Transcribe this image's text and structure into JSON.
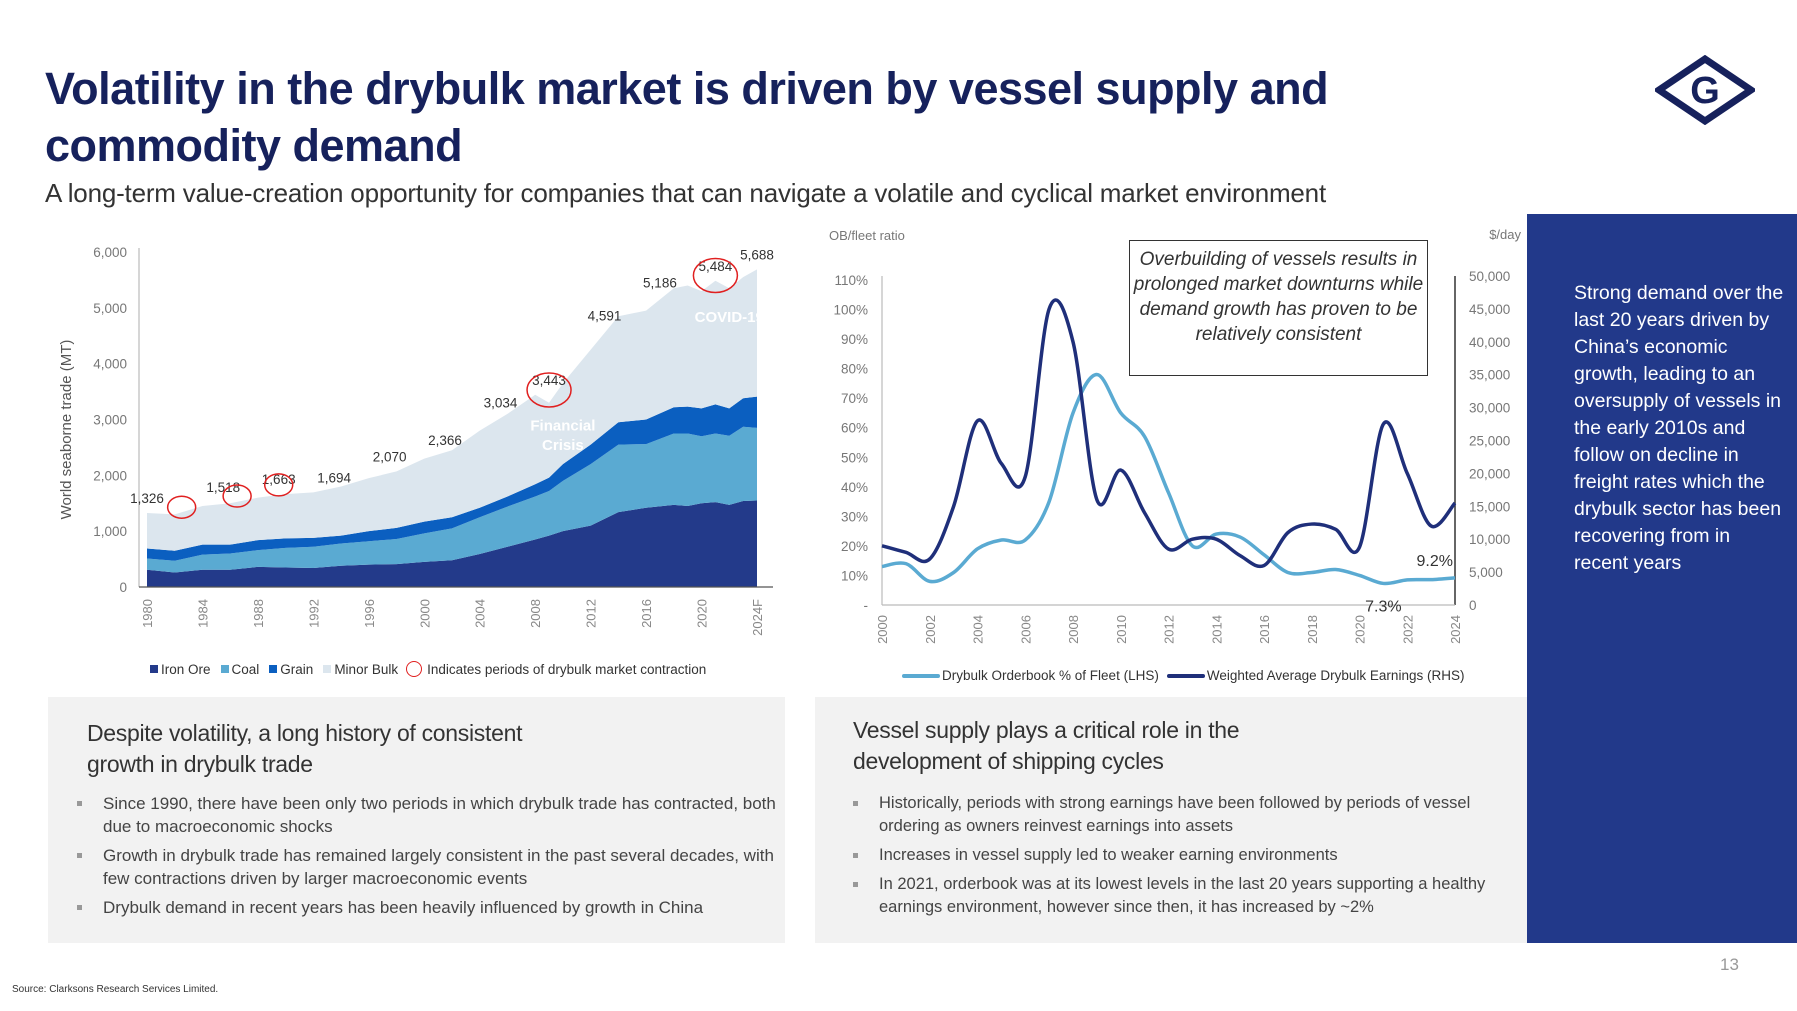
{
  "header": {
    "title": "Volatility in the drybulk market is driven by vessel supply and commodity demand",
    "subtitle": "A long-term value-creation opportunity for companies that can navigate a volatile and cyclical market environment",
    "logo_letter": "G"
  },
  "colors": {
    "title": "#16215c",
    "iron_ore": "#233a8a",
    "coal": "#5aaad2",
    "grain": "#0b5fc0",
    "minor_bulk": "#dce6ee",
    "contraction_circle": "#e02020",
    "orderbook_line": "#5aaad2",
    "earnings_line": "#1f2f7a",
    "panel": "#22398a"
  },
  "chart_data": [
    {
      "type": "area",
      "stacked": true,
      "ylabel": "World seaborne trade (MT)",
      "ylim": [
        0,
        6000
      ],
      "yticks": [
        0,
        1000,
        2000,
        3000,
        4000,
        5000,
        6000
      ],
      "ytick_labels": [
        "0",
        "1,000",
        "2,000",
        "3,000",
        "4,000",
        "5,000",
        "6,000"
      ],
      "xticks": [
        "1980",
        "1984",
        "1988",
        "1992",
        "1996",
        "2000",
        "2004",
        "2008",
        "2012",
        "2016",
        "2020",
        "2024F"
      ],
      "x": [
        1980,
        1982,
        1984,
        1986,
        1988,
        1990,
        1992,
        1994,
        1996,
        1998,
        2000,
        2002,
        2004,
        2006,
        2008,
        2009,
        2010,
        2012,
        2014,
        2016,
        2018,
        2019,
        2020,
        2021,
        2022,
        2023,
        2024
      ],
      "series": [
        {
          "name": "Iron Ore",
          "values": [
            310,
            260,
            310,
            310,
            360,
            350,
            340,
            380,
            400,
            410,
            450,
            480,
            590,
            720,
            850,
            920,
            1000,
            1100,
            1340,
            1420,
            1470,
            1450,
            1500,
            1520,
            1470,
            1540,
            1550
          ]
        },
        {
          "name": "Coal",
          "values": [
            200,
            210,
            270,
            290,
            300,
            350,
            380,
            400,
            420,
            450,
            510,
            570,
            660,
            720,
            770,
            800,
            900,
            1100,
            1210,
            1140,
            1280,
            1300,
            1200,
            1230,
            1240,
            1330,
            1300
          ]
        },
        {
          "name": "Grain",
          "values": [
            180,
            180,
            180,
            160,
            180,
            170,
            160,
            140,
            180,
            200,
            210,
            200,
            170,
            180,
            220,
            240,
            300,
            350,
            400,
            440,
            470,
            480,
            500,
            520,
            490,
            510,
            560
          ]
        },
        {
          "name": "Minor Bulk",
          "values": [
            636,
            650,
            690,
            740,
            760,
            793,
            814,
            880,
            950,
            1010,
            1130,
            1200,
            1380,
            1480,
            1603,
            1340,
            1450,
            1700,
            1900,
            1950,
            2130,
            2170,
            2100,
            2214,
            2150,
            2170,
            2278
          ]
        }
      ],
      "data_labels": [
        {
          "x": 1980,
          "value": 1326,
          "text": "1,326"
        },
        {
          "x": 1985.5,
          "value": 1518,
          "text": "1,518"
        },
        {
          "x": 1989.5,
          "value": 1663,
          "text": "1,663"
        },
        {
          "x": 1993.5,
          "value": 1694,
          "text": "1,694"
        },
        {
          "x": 1997.5,
          "value": 2070,
          "text": "2,070"
        },
        {
          "x": 2001.5,
          "value": 2366,
          "text": "2,366"
        },
        {
          "x": 2005.5,
          "value": 3034,
          "text": "3,034"
        },
        {
          "x": 2009,
          "value": 3443,
          "text": "3,443"
        },
        {
          "x": 2013,
          "value": 4591,
          "text": "4,591"
        },
        {
          "x": 2017,
          "value": 5186,
          "text": "5,186"
        },
        {
          "x": 2021,
          "value": 5484,
          "text": "5,484"
        },
        {
          "x": 2024,
          "value": 5688,
          "text": "5,688"
        }
      ],
      "contraction_periods": [
        {
          "x": 1982.5,
          "value": 1250
        },
        {
          "x": 1986.5,
          "value": 1450
        },
        {
          "x": 1989.5,
          "value": 1650
        },
        {
          "x": 2009,
          "value": 3350
        },
        {
          "x": 2021,
          "value": 5400
        }
      ],
      "annotations": [
        {
          "x": 2010,
          "value": 2800,
          "text": "Financial"
        },
        {
          "x": 2010,
          "value": 2450,
          "text": "Crisis"
        },
        {
          "x": 2022,
          "value": 4750,
          "text": "COVID-19"
        }
      ],
      "legend": {
        "placement": "bottom",
        "items": [
          "Iron Ore",
          "Coal",
          "Grain",
          "Minor Bulk"
        ],
        "circle_note": "Indicates periods of drybulk market contraction"
      }
    },
    {
      "type": "line",
      "ylabel_left": "OB/fleet ratio",
      "ylabel_right": "$/day",
      "ylim_left": [
        0,
        110
      ],
      "ylim_right": [
        0,
        50000
      ],
      "yticks_left_labels": [
        "-",
        "10%",
        "20%",
        "30%",
        "40%",
        "50%",
        "60%",
        "70%",
        "80%",
        "90%",
        "100%",
        "110%"
      ],
      "yticks_right_labels": [
        "0",
        "5,000",
        "10,000",
        "15,000",
        "20,000",
        "25,000",
        "30,000",
        "35,000",
        "40,000",
        "45,000",
        "50,000"
      ],
      "xticks": [
        "2000",
        "2002",
        "2004",
        "2006",
        "2008",
        "2010",
        "2012",
        "2014",
        "2016",
        "2018",
        "2020",
        "2022",
        "2024"
      ],
      "x": [
        2000,
        2001,
        2002,
        2003,
        2004,
        2005,
        2006,
        2007,
        2008,
        2009,
        2010,
        2011,
        2012,
        2013,
        2014,
        2015,
        2016,
        2017,
        2018,
        2019,
        2020,
        2021,
        2022,
        2023,
        2024
      ],
      "series": [
        {
          "name": "Drybulk Orderbook % of Fleet (LHS)",
          "axis": "left",
          "values": [
            13,
            14,
            8,
            11,
            19,
            22,
            22,
            35,
            65,
            78,
            65,
            57,
            38,
            20,
            24,
            23,
            17,
            11,
            11,
            12,
            10,
            7.3,
            8.5,
            8.6,
            9.2
          ]
        },
        {
          "name": "Weighted Average Drybulk Earnings (RHS)",
          "axis": "right",
          "values": [
            9000,
            8000,
            7000,
            15000,
            28000,
            21500,
            19500,
            45000,
            40000,
            16000,
            20500,
            14000,
            8500,
            10000,
            10000,
            7500,
            6000,
            11000,
            12300,
            11500,
            8800,
            27500,
            20000,
            12000,
            15500
          ]
        }
      ],
      "data_labels": [
        {
          "x": 2024,
          "value": 9.2,
          "text": "9.2%"
        },
        {
          "x": 2021,
          "value": 7.3,
          "text": "7.3%"
        }
      ],
      "annotation_box": "Overbuilding of vessels results in prolonged market downturns while demand growth has proven to be relatively consistent",
      "legend": {
        "placement": "bottom"
      }
    }
  ],
  "left_box": {
    "heading": "Despite volatility, a long history of consistent growth in drybulk trade",
    "bullets": [
      "Since 1990, there have been only two periods in which drybulk trade has contracted, both due to macroeconomic shocks",
      "Growth in drybulk trade has remained largely consistent in the past several decades, with few contractions driven by larger macroeconomic events",
      "Drybulk demand in recent years has been heavily influenced by growth in China"
    ]
  },
  "right_box": {
    "heading": "Vessel supply plays a critical role in the development of shipping cycles",
    "bullets": [
      "Historically, periods with strong earnings have been followed by periods of vessel ordering as owners reinvest earnings into assets",
      "Increases in vessel supply led to weaker earning environments",
      "In 2021, orderbook was at its lowest levels in the last 20 years supporting a healthy earnings environment, however since then, it has increased by ~2%"
    ]
  },
  "side_panel": {
    "text": "Strong demand over the last 20 years driven by China’s economic growth, leading to an oversupply of vessels in the early 2010s and follow on decline in freight rates which the drybulk sector has been recovering from in recent years"
  },
  "footer": {
    "source": "Source: Clarksons Research Services Limited.",
    "page_number": "13"
  }
}
